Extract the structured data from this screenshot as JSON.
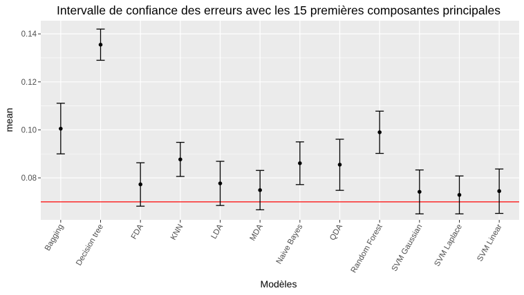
{
  "chart_data": {
    "type": "errorbar",
    "title": "Intervalle de confiance des erreurs avec les 15 premières composantes principales",
    "xlabel": "Modèles",
    "ylabel": "mean",
    "ylim": [
      0.0625,
      0.1455
    ],
    "yticks": [
      0.08,
      0.1,
      0.12,
      0.14
    ],
    "ytick_labels": [
      "0.08",
      "0.10",
      "0.12",
      "0.14"
    ],
    "grid": true,
    "reference_line": {
      "y": 0.07,
      "color": "#ff0000"
    },
    "categories": [
      "Bagging",
      "Decision tree",
      "FDA",
      "KNN",
      "LDA",
      "MDA",
      "Naive Bayes",
      "QDA",
      "Random Forest",
      "SVM Gaussian",
      "SVM Laplace",
      "SVM Linear"
    ],
    "mean": [
      0.1005,
      0.1355,
      0.0773,
      0.0877,
      0.0777,
      0.0749,
      0.0861,
      0.0855,
      0.099,
      0.0742,
      0.0729,
      0.0745
    ],
    "lower": [
      0.09,
      0.129,
      0.0682,
      0.0806,
      0.0685,
      0.0667,
      0.0772,
      0.0748,
      0.0902,
      0.065,
      0.065,
      0.0652
    ],
    "upper": [
      0.1111,
      0.142,
      0.0863,
      0.0948,
      0.0869,
      0.0831,
      0.095,
      0.0961,
      0.1078,
      0.0833,
      0.0808,
      0.0837
    ]
  },
  "colors": {
    "panel": "#ebebeb",
    "grid": "#ffffff",
    "point": "#000000",
    "reference": "#ff0000"
  }
}
